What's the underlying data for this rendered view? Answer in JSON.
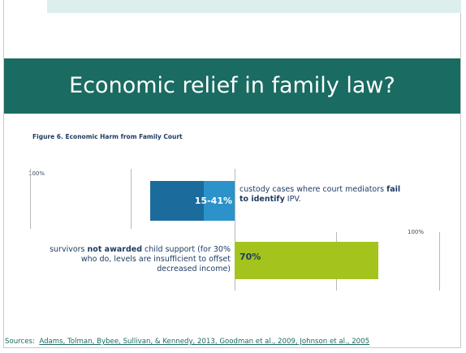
{
  "slide": {
    "title": "Economic relief in family law?"
  },
  "chart_data": {
    "type": "bar",
    "title": "Figure 6. Economic Harm from Family Court",
    "axis_label_left": "100%",
    "axis_label_right": "100%",
    "categories": [
      "custody cases where court mediators fail to identify IPV.",
      "survivors not awarded child support (for 30% who do, levels are insufficient to offset decreased income)"
    ],
    "series": [
      {
        "direction": "left",
        "range": [
          15,
          41
        ],
        "value_label": "15-41%",
        "colors": [
          "#1b6b9c",
          "#2b93c9"
        ],
        "description_pre": "custody cases where court mediators ",
        "description_bold": "fail to identify",
        "description_post": " IPV."
      },
      {
        "direction": "right",
        "value": 70,
        "value_label": "70%",
        "color": "#a4c41d",
        "description_pre": "survivors ",
        "description_bold": "not awarded",
        "description_post": " child support (for 30% who do, levels are insufficient to offset decreased income)"
      }
    ]
  },
  "sources": {
    "label": "Sources:",
    "refs": "Adams, Tolman, Bybee, Sullivan, & Kennedy, 2013, Goodman et al., 2009, Johnson et al., 2005"
  },
  "colors": {
    "title_band": "#1a6b61",
    "accent_top": "#dcefed",
    "text_dark": "#1f3b63"
  }
}
